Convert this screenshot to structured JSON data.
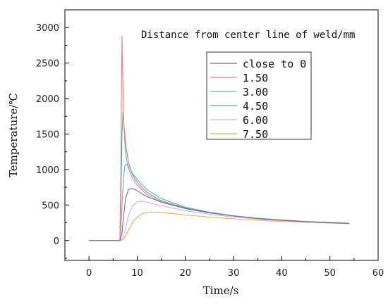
{
  "chart_data": {
    "type": "line",
    "xlabel": "Time/s",
    "ylabel": "Temperature/℃",
    "xlim": [
      -5,
      60
    ],
    "ylim": [
      -280,
      3250
    ],
    "x_ticks": [
      0,
      10,
      20,
      30,
      40,
      50,
      60
    ],
    "y_ticks": [
      0,
      500,
      1000,
      1500,
      2000,
      2500,
      3000
    ],
    "grid": false,
    "legend_title": "Distance from center line of weld/mm",
    "legend_position": "top-right",
    "series": [
      {
        "name": "close to 0",
        "color": "#6f6f8a",
        "x": [
          0,
          6.4,
          6.8,
          7.2,
          7.6,
          8.2,
          9,
          10,
          12,
          15,
          20,
          25,
          30,
          35,
          40,
          45,
          50,
          54
        ],
        "y": [
          0,
          0,
          80,
          350,
          600,
          720,
          735,
          700,
          620,
          540,
          450,
          390,
          345,
          310,
          285,
          265,
          250,
          240
        ]
      },
      {
        "name": "1.50",
        "color": "#f08080",
        "x": [
          0,
          6.4,
          6.6,
          6.85,
          7.0,
          7.2,
          7.5,
          8,
          9,
          10,
          12,
          15,
          20,
          25,
          30,
          35,
          40,
          45,
          50,
          54
        ],
        "y": [
          0,
          0,
          900,
          2880,
          2300,
          1700,
          1300,
          1050,
          880,
          780,
          650,
          545,
          450,
          390,
          345,
          310,
          285,
          265,
          250,
          240
        ]
      },
      {
        "name": "3.00",
        "color": "#6fa8dc",
        "x": [
          0,
          6.4,
          6.6,
          7.0,
          7.4,
          7.8,
          8.3,
          9,
          10,
          12,
          15,
          20,
          25,
          30,
          35,
          40,
          45,
          50,
          54
        ],
        "y": [
          0,
          0,
          150,
          700,
          1050,
          1075,
          1040,
          950,
          860,
          720,
          590,
          470,
          400,
          350,
          315,
          290,
          270,
          255,
          245
        ]
      },
      {
        "name": "4.50",
        "color": "#4caf8f",
        "x": [
          0,
          6.4,
          6.6,
          6.85,
          7.05,
          7.3,
          7.7,
          8.2,
          9,
          10,
          12,
          15,
          20,
          25,
          30,
          35,
          40,
          45,
          50,
          54
        ],
        "y": [
          0,
          0,
          500,
          1500,
          1805,
          1600,
          1300,
          1100,
          930,
          820,
          680,
          560,
          460,
          395,
          348,
          312,
          287,
          267,
          252,
          242
        ]
      },
      {
        "name": "6.00",
        "color": "#c9b3f0",
        "x": [
          0,
          6.5,
          7,
          7.6,
          8.2,
          9,
          10,
          11,
          12,
          15,
          20,
          25,
          30,
          35,
          40,
          45,
          50,
          54
        ],
        "y": [
          0,
          0,
          30,
          180,
          350,
          480,
          545,
          555,
          540,
          490,
          420,
          370,
          330,
          300,
          278,
          260,
          247,
          238
        ]
      },
      {
        "name": "7.50",
        "color": "#f0b040",
        "x": [
          0,
          6.6,
          7.2,
          8,
          9,
          10,
          11,
          12,
          13,
          15,
          18,
          20,
          25,
          30,
          35,
          40,
          45,
          50,
          54
        ],
        "y": [
          0,
          0,
          20,
          120,
          250,
          330,
          375,
          395,
          400,
          395,
          375,
          360,
          330,
          305,
          285,
          268,
          255,
          245,
          238
        ]
      }
    ]
  }
}
